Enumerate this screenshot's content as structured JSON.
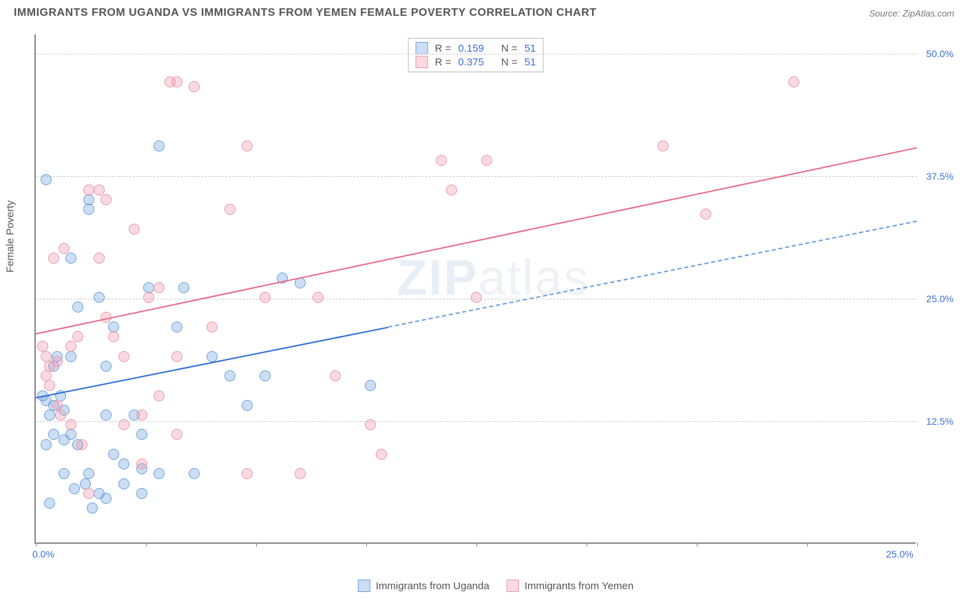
{
  "title": "IMMIGRANTS FROM UGANDA VS IMMIGRANTS FROM YEMEN FEMALE POVERTY CORRELATION CHART",
  "source": "Source: ZipAtlas.com",
  "watermark_zip": "ZIP",
  "watermark_atlas": "atlas",
  "chart": {
    "type": "scatter",
    "ylabel": "Female Poverty",
    "xlim": [
      0,
      25
    ],
    "ylim": [
      0,
      52
    ],
    "xticks": [
      0,
      12.5,
      25
    ],
    "xtick_labels": [
      "0.0%",
      "",
      "25.0%"
    ],
    "yticks": [
      12.5,
      25,
      37.5,
      50
    ],
    "ytick_labels": [
      "12.5%",
      "25.0%",
      "37.5%",
      "50.0%"
    ],
    "background_color": "#ffffff",
    "grid_color": "#cccccc",
    "axis_color": "#888888",
    "tick_label_color": "#3b6fd6",
    "series": [
      {
        "name": "Immigrants from Uganda",
        "fill": "rgba(108,160,220,0.35)",
        "stroke": "#6ca0dc",
        "trend_color": "#2e6fd6",
        "trend_dash_color": "#6ca0dc",
        "R": "0.159",
        "N": "51",
        "trend": {
          "x1": 0,
          "y1": 15,
          "x2": 25,
          "y2": 33,
          "solid_until_x": 10
        },
        "points": [
          [
            0.2,
            15
          ],
          [
            0.3,
            14.5
          ],
          [
            0.4,
            13
          ],
          [
            0.5,
            18
          ],
          [
            0.5,
            14
          ],
          [
            0.6,
            19
          ],
          [
            0.7,
            15
          ],
          [
            0.8,
            13.5
          ],
          [
            0.3,
            10
          ],
          [
            0.5,
            11
          ],
          [
            0.8,
            10.5
          ],
          [
            1.0,
            11
          ],
          [
            1.2,
            10
          ],
          [
            1.5,
            7
          ],
          [
            1.6,
            3.5
          ],
          [
            1.8,
            5
          ],
          [
            2.0,
            4.5
          ],
          [
            2.2,
            9
          ],
          [
            2.5,
            8
          ],
          [
            3.0,
            7.5
          ],
          [
            3.5,
            7
          ],
          [
            1.0,
            19
          ],
          [
            1.2,
            24
          ],
          [
            1.5,
            35
          ],
          [
            1.8,
            25
          ],
          [
            2.0,
            18
          ],
          [
            2.2,
            22
          ],
          [
            2.8,
            13
          ],
          [
            3.0,
            11
          ],
          [
            3.2,
            26
          ],
          [
            3.5,
            40.5
          ],
          [
            4.0,
            22
          ],
          [
            4.2,
            26
          ],
          [
            4.5,
            7
          ],
          [
            5.0,
            19
          ],
          [
            5.5,
            17
          ],
          [
            6.0,
            14
          ],
          [
            6.5,
            17
          ],
          [
            7.0,
            27
          ],
          [
            7.5,
            26.5
          ],
          [
            9.5,
            16
          ],
          [
            0.3,
            37
          ],
          [
            1.0,
            29
          ],
          [
            1.5,
            34
          ],
          [
            2.0,
            13
          ],
          [
            0.4,
            4
          ],
          [
            0.8,
            7
          ],
          [
            1.1,
            5.5
          ],
          [
            1.4,
            6
          ],
          [
            2.5,
            6
          ],
          [
            3.0,
            5
          ]
        ]
      },
      {
        "name": "Immigrants from Yemen",
        "fill": "rgba(240,150,170,0.35)",
        "stroke": "#e998ad",
        "trend_color": "#e86b8f",
        "R": "0.375",
        "N": "51",
        "trend": {
          "x1": 0,
          "y1": 21.5,
          "x2": 25,
          "y2": 40.5,
          "solid_until_x": 25
        },
        "points": [
          [
            0.2,
            20
          ],
          [
            0.3,
            19
          ],
          [
            0.4,
            18
          ],
          [
            0.5,
            29
          ],
          [
            0.6,
            18.5
          ],
          [
            0.8,
            30
          ],
          [
            1.0,
            20
          ],
          [
            1.2,
            21
          ],
          [
            1.5,
            36
          ],
          [
            1.8,
            36
          ],
          [
            2.0,
            23
          ],
          [
            2.2,
            21
          ],
          [
            2.5,
            19
          ],
          [
            2.8,
            32
          ],
          [
            3.0,
            13
          ],
          [
            3.2,
            25
          ],
          [
            3.5,
            26
          ],
          [
            3.8,
            47
          ],
          [
            4.0,
            11
          ],
          [
            4.5,
            46.5
          ],
          [
            5.0,
            22
          ],
          [
            5.5,
            34
          ],
          [
            6.0,
            40.5
          ],
          [
            6.5,
            25
          ],
          [
            7.5,
            7
          ],
          [
            8.0,
            25
          ],
          [
            8.5,
            17
          ],
          [
            9.5,
            12
          ],
          [
            9.8,
            9
          ],
          [
            11.5,
            39
          ],
          [
            11.8,
            36
          ],
          [
            12.5,
            25
          ],
          [
            12.8,
            39
          ],
          [
            17.8,
            40.5
          ],
          [
            19.0,
            33.5
          ],
          [
            21.5,
            47
          ],
          [
            0.3,
            17
          ],
          [
            0.4,
            16
          ],
          [
            0.6,
            14
          ],
          [
            0.7,
            13
          ],
          [
            1.0,
            12
          ],
          [
            1.3,
            10
          ],
          [
            1.5,
            5
          ],
          [
            1.8,
            29
          ],
          [
            2.0,
            35
          ],
          [
            2.5,
            12
          ],
          [
            3.0,
            8
          ],
          [
            3.5,
            15
          ],
          [
            4.0,
            19
          ],
          [
            4.0,
            47
          ],
          [
            6.0,
            7
          ]
        ]
      }
    ]
  },
  "legend_top": {
    "R_label": "R  =",
    "N_label": "N  ="
  },
  "legend_bottom": [
    "Immigrants from Uganda",
    "Immigrants from Yemen"
  ]
}
